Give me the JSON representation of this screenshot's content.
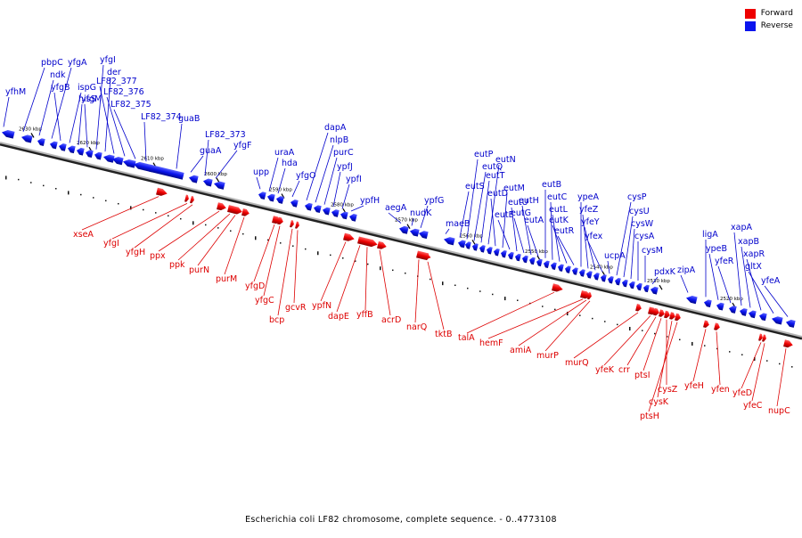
{
  "legend": {
    "forward_label": "Forward",
    "reverse_label": "Reverse",
    "forward_color": "#ee0000",
    "reverse_color": "#0a14ee"
  },
  "caption": "Escherichia coli LF82 chromosome, complete sequence. - 0..4773108",
  "map": {
    "axis_color": "#808080",
    "label_color_forward": "#dd0000",
    "label_color_reverse": "#0000cc",
    "kbp_ticks": [
      {
        "label": "2630 kbp",
        "kbp": 2630
      },
      {
        "label": "2620 kbp",
        "kbp": 2620
      },
      {
        "label": "2610 kbp",
        "kbp": 2610
      },
      {
        "label": "2600 kbp",
        "kbp": 2600
      },
      {
        "label": "2590 kbp",
        "kbp": 2590
      },
      {
        "label": "2580 kbp",
        "kbp": 2580
      },
      {
        "label": "2570 kbp",
        "kbp": 2570
      },
      {
        "label": "2560 kbp",
        "kbp": 2560
      },
      {
        "label": "2550 kbp",
        "kbp": 2550
      },
      {
        "label": "2540 kbp",
        "kbp": 2540
      },
      {
        "label": "2530 kbp",
        "kbp": 2530
      },
      {
        "label": "2520 kbp",
        "kbp": 2520
      }
    ],
    "reverse_genes": [
      "yfhM",
      "pbpC",
      "ndk",
      "yfgA",
      "yfgB",
      "ispG",
      "hisS",
      "yfgM",
      "yfgI",
      "der",
      "LF82_377",
      "LF82_376",
      "LF82_375",
      "LF82_374",
      "guaB",
      "guaA",
      "LF82_373",
      "yfgF",
      "upp",
      "uraA",
      "hda",
      "yfgO",
      "dapA",
      "nlpB",
      "purC",
      "ypfJ",
      "ypfI",
      "ypfH",
      "aegA",
      "nudK",
      "ypfG",
      "maeB",
      "eutS",
      "eutP",
      "eutQ",
      "eutT",
      "eutN",
      "eutD",
      "eutM",
      "eutE",
      "eutU",
      "eutG",
      "eutH",
      "eutA",
      "eutB",
      "eutC",
      "eutL",
      "eutK",
      "eutR",
      "ypeA",
      "yfeZ",
      "yfeY",
      "yfex",
      "ucpA",
      "cysP",
      "cysU",
      "cysW",
      "cysA",
      "cysM",
      "pdxK",
      "zipA",
      "ligA",
      "ypeB",
      "yfeR",
      "xapA",
      "xapB",
      "xapR",
      "gltX",
      "yfeA"
    ],
    "forward_genes": [
      "xseA",
      "yfgI",
      "yfgH",
      "ppx",
      "ppk",
      "purN",
      "purM",
      "yfgD",
      "yfgC",
      "bcp",
      "gcvR",
      "ypfN",
      "dapE",
      "yffB",
      "acrD",
      "narQ",
      "tktB",
      "talA",
      "hemF",
      "amiA",
      "murP",
      "murQ",
      "yfeK",
      "crr",
      "ptsI",
      "cysZ",
      "cysK",
      "ptsH",
      "yfeH",
      "yfen",
      "yfeD",
      "yfeC",
      "nupC"
    ]
  }
}
